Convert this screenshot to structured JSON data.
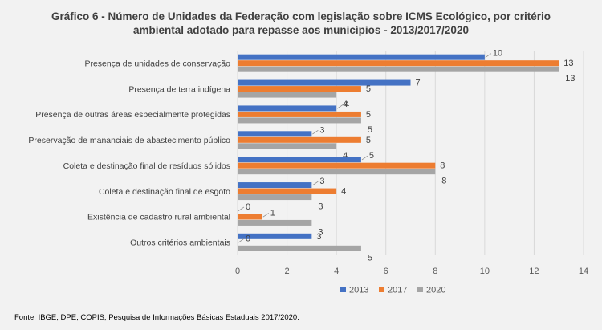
{
  "chart_data": {
    "type": "bar",
    "orientation": "horizontal",
    "title_line1": "Gráfico 6 - Número de Unidades da Federação com legislação sobre ICMS Ecológico, por critério",
    "title_line2": "ambiental adotado para repasse aos municípios - 2013/2017/2020",
    "categories": [
      "Presença de unidades de conservação",
      "Presença de terra indígena",
      "Presença de outras áreas especialmente protegidas",
      "Preservação de mananciais de abastecimento público",
      "Coleta e destinação final de resíduos sólidos",
      "Coleta e destinação final de esgoto",
      "Existência de cadastro rural ambiental",
      "Outros critérios ambientais"
    ],
    "series": [
      {
        "name": "2013",
        "color": "#4472c4",
        "values": [
          10,
          7,
          4,
          3,
          5,
          3,
          0,
          3
        ]
      },
      {
        "name": "2017",
        "color": "#ed7d31",
        "values": [
          13,
          5,
          5,
          5,
          8,
          4,
          1,
          0
        ]
      },
      {
        "name": "2020",
        "color": "#a5a5a5",
        "values": [
          13,
          4,
          5,
          4,
          8,
          3,
          3,
          5
        ]
      }
    ],
    "xlim": [
      0,
      14
    ],
    "xticks": [
      0,
      2,
      4,
      6,
      8,
      10,
      12,
      14
    ],
    "grid": true,
    "legend_position": "bottom"
  },
  "source": "Fonte: IBGE, DPE, COPIS, Pesquisa de Informações Básicas Estaduais 2017/2020."
}
